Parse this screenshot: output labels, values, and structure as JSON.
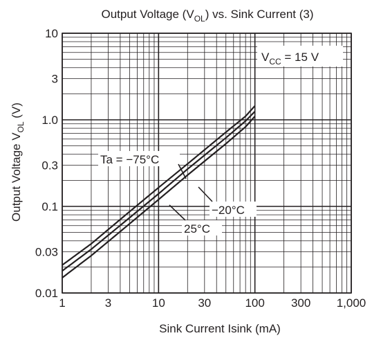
{
  "chart_data": {
    "type": "line",
    "title_text": "Output Voltage (V",
    "title_sub": "OL",
    "title_suffix": ") vs. Sink Current (3)",
    "xlabel": "Sink Current  Isink  (mA)",
    "ylabel_text": "Output Voltage  V",
    "ylabel_sub": "OL",
    "ylabel_suffix": "  (V)",
    "x_scale": "log",
    "y_scale": "log",
    "xlim": [
      1,
      1000
    ],
    "ylim": [
      0.01,
      10
    ],
    "x_ticks": [
      "1",
      "3",
      "10",
      "30",
      "100",
      "300",
      "1,000"
    ],
    "y_ticks": [
      "10",
      "3",
      "1.0",
      "0.3",
      "0.1",
      "0.03",
      "0.01"
    ],
    "grid": true,
    "annotation_vcc_prefix": "V",
    "annotation_vcc_sub": "CC",
    "annotation_vcc_suffix": " = 15 V",
    "series": [
      {
        "name": "Ta = −75°C",
        "x": [
          1,
          2,
          5,
          10,
          20,
          50,
          80,
          100
        ],
        "y": [
          0.021,
          0.037,
          0.087,
          0.165,
          0.31,
          0.72,
          1.1,
          1.45
        ]
      },
      {
        "name": "−20°C",
        "x": [
          1,
          2,
          5,
          10,
          20,
          50,
          80,
          100
        ],
        "y": [
          0.018,
          0.032,
          0.074,
          0.14,
          0.27,
          0.62,
          0.97,
          1.25
        ]
      },
      {
        "name": "25°C",
        "x": [
          1,
          2,
          5,
          10,
          20,
          50,
          80,
          100
        ],
        "y": [
          0.015,
          0.027,
          0.063,
          0.12,
          0.23,
          0.53,
          0.83,
          1.1
        ]
      }
    ]
  }
}
